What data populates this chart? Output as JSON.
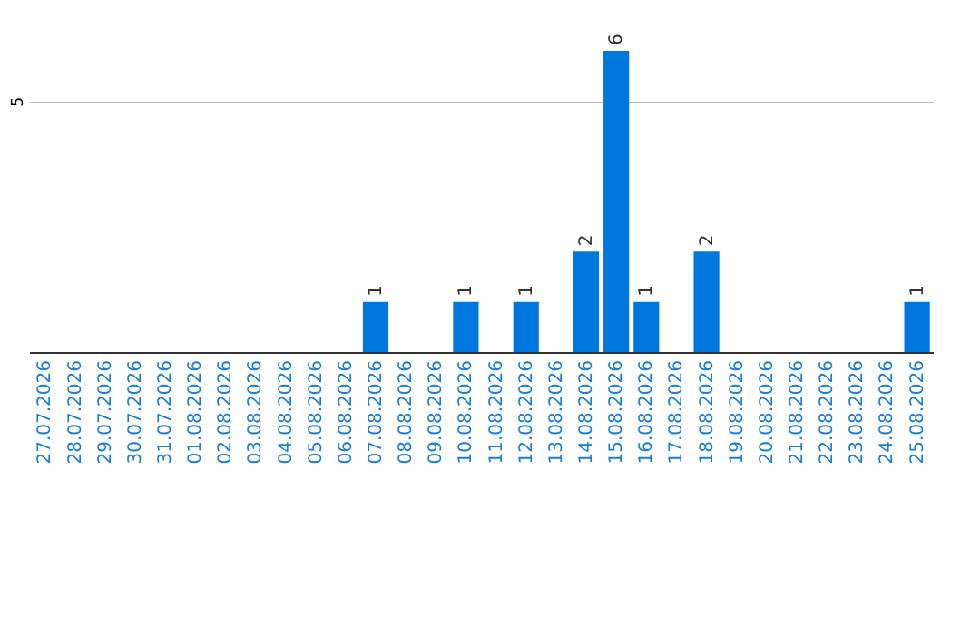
{
  "chart_data": {
    "type": "bar",
    "categories": [
      "27.07.2026",
      "28.07.2026",
      "29.07.2026",
      "30.07.2026",
      "31.07.2026",
      "01.08.2026",
      "02.08.2026",
      "03.08.2026",
      "04.08.2026",
      "05.08.2026",
      "06.08.2026",
      "07.08.2026",
      "08.08.2026",
      "09.08.2026",
      "10.08.2026",
      "11.08.2026",
      "12.08.2026",
      "13.08.2026",
      "14.08.2026",
      "15.08.2026",
      "16.08.2026",
      "17.08.2026",
      "18.08.2026",
      "19.08.2026",
      "20.08.2026",
      "21.08.2026",
      "22.08.2026",
      "23.08.2026",
      "24.08.2026",
      "25.08.2026"
    ],
    "values": [
      0,
      0,
      0,
      0,
      0,
      0,
      0,
      0,
      0,
      0,
      0,
      1,
      0,
      0,
      1,
      0,
      1,
      0,
      2,
      6,
      1,
      0,
      2,
      0,
      0,
      0,
      0,
      0,
      0,
      1
    ],
    "color": "#0077dd",
    "value_labels": [
      null,
      null,
      null,
      null,
      null,
      null,
      null,
      null,
      null,
      null,
      null,
      "1",
      null,
      null,
      "1",
      null,
      "1",
      null,
      "2",
      "6",
      "1",
      null,
      "2",
      null,
      null,
      null,
      null,
      null,
      null,
      "1"
    ],
    "ylim": [
      0,
      6
    ],
    "yticks": [
      5
    ],
    "grid": "y"
  }
}
